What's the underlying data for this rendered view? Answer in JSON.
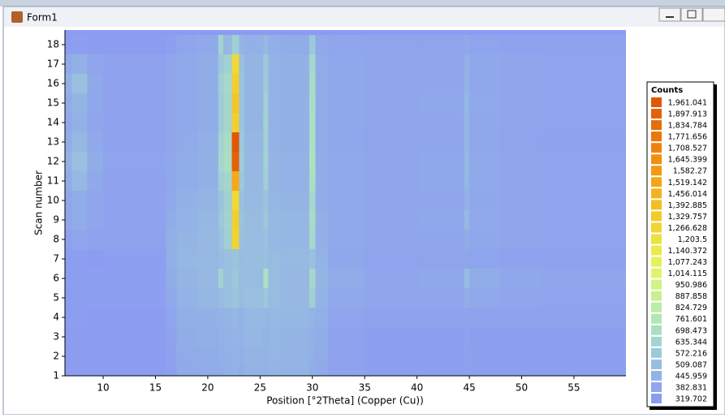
{
  "window": {
    "title": "Form1"
  },
  "chart_data": {
    "type": "heatmap",
    "xlabel": "Position [°2Theta] (Copper (Cu))",
    "ylabel": "Scan number",
    "x_edges": [
      6.35,
      7,
      8.5,
      10,
      16,
      17,
      19,
      21,
      21.5,
      22.3,
      23,
      23.5,
      25.3,
      25.8,
      27,
      29.7,
      30.3,
      31.5,
      35,
      40,
      44.5,
      45,
      48,
      52,
      55,
      59.97
    ],
    "y": [
      1,
      2,
      3,
      4,
      5,
      6,
      7,
      8,
      9,
      10,
      11,
      12,
      13,
      14,
      15,
      16,
      17,
      18
    ],
    "values": [
      [
        330,
        330,
        330,
        330,
        350,
        400,
        410,
        420,
        430,
        440,
        420,
        450,
        440,
        460,
        450,
        420,
        400,
        360,
        350,
        350,
        350,
        350,
        350,
        350,
        350
      ],
      [
        330,
        330,
        330,
        330,
        355,
        410,
        420,
        430,
        440,
        450,
        430,
        460,
        450,
        465,
        455,
        430,
        410,
        360,
        350,
        350,
        355,
        350,
        350,
        350,
        350
      ],
      [
        330,
        330,
        330,
        330,
        360,
        420,
        430,
        440,
        450,
        460,
        440,
        470,
        460,
        470,
        460,
        440,
        420,
        360,
        350,
        350,
        360,
        350,
        350,
        350,
        350
      ],
      [
        330,
        340,
        330,
        330,
        370,
        430,
        440,
        450,
        460,
        470,
        450,
        480,
        470,
        480,
        470,
        460,
        430,
        370,
        360,
        360,
        370,
        360,
        360,
        360,
        360
      ],
      [
        330,
        350,
        340,
        340,
        400,
        450,
        470,
        500,
        520,
        540,
        500,
        520,
        560,
        500,
        480,
        600,
        450,
        400,
        380,
        380,
        420,
        400,
        380,
        370,
        370
      ],
      [
        330,
        340,
        340,
        340,
        420,
        460,
        480,
        620,
        520,
        560,
        500,
        500,
        700,
        500,
        480,
        650,
        460,
        410,
        380,
        390,
        500,
        420,
        390,
        380,
        380
      ],
      [
        330,
        340,
        330,
        340,
        430,
        470,
        480,
        500,
        520,
        540,
        500,
        510,
        520,
        500,
        490,
        520,
        450,
        390,
        370,
        370,
        380,
        370,
        360,
        360,
        360
      ],
      [
        350,
        380,
        360,
        360,
        430,
        460,
        480,
        520,
        600,
        1280,
        520,
        500,
        520,
        480,
        470,
        650,
        430,
        400,
        380,
        380,
        420,
        390,
        380,
        370,
        370
      ],
      [
        380,
        420,
        380,
        360,
        420,
        450,
        470,
        560,
        620,
        1300,
        540,
        500,
        560,
        480,
        470,
        680,
        430,
        400,
        380,
        390,
        480,
        400,
        380,
        370,
        370
      ],
      [
        380,
        420,
        380,
        360,
        400,
        440,
        460,
        540,
        600,
        1250,
        520,
        490,
        540,
        470,
        460,
        650,
        420,
        400,
        380,
        380,
        440,
        390,
        380,
        370,
        370
      ],
      [
        420,
        480,
        400,
        360,
        390,
        420,
        440,
        600,
        640,
        1500,
        560,
        480,
        600,
        460,
        450,
        700,
        420,
        400,
        380,
        390,
        470,
        400,
        380,
        370,
        370
      ],
      [
        440,
        520,
        420,
        370,
        390,
        420,
        440,
        650,
        700,
        1900,
        580,
        480,
        620,
        460,
        450,
        720,
        420,
        400,
        380,
        390,
        480,
        400,
        380,
        370,
        370
      ],
      [
        420,
        480,
        400,
        360,
        380,
        410,
        430,
        620,
        680,
        1961,
        560,
        470,
        600,
        450,
        440,
        700,
        410,
        390,
        370,
        380,
        460,
        390,
        370,
        360,
        360
      ],
      [
        400,
        440,
        380,
        360,
        380,
        400,
        420,
        580,
        640,
        1300,
        540,
        460,
        620,
        450,
        440,
        700,
        410,
        390,
        380,
        380,
        460,
        390,
        380,
        370,
        370
      ],
      [
        420,
        460,
        390,
        360,
        380,
        400,
        420,
        580,
        640,
        1350,
        540,
        460,
        600,
        450,
        440,
        690,
        410,
        390,
        380,
        390,
        470,
        400,
        380,
        370,
        370
      ],
      [
        440,
        520,
        400,
        360,
        380,
        400,
        420,
        600,
        660,
        1300,
        540,
        460,
        580,
        450,
        440,
        680,
        410,
        390,
        380,
        380,
        450,
        390,
        380,
        370,
        370
      ],
      [
        400,
        440,
        380,
        360,
        380,
        400,
        420,
        560,
        620,
        1250,
        520,
        460,
        560,
        450,
        440,
        650,
        410,
        390,
        380,
        380,
        440,
        390,
        380,
        370,
        370
      ],
      [
        330,
        340,
        330,
        330,
        350,
        380,
        400,
        620,
        480,
        600,
        460,
        440,
        480,
        430,
        420,
        560,
        400,
        380,
        370,
        370,
        400,
        370,
        360,
        360,
        360
      ]
    ],
    "xlim": [
      6.35,
      59.97
    ],
    "ylim": [
      1,
      18.75
    ],
    "xticks": [
      10,
      15,
      20,
      25,
      30,
      35,
      40,
      45,
      50,
      55
    ],
    "yticks": [
      1,
      2,
      3,
      4,
      5,
      6,
      7,
      8,
      9,
      10,
      11,
      12,
      13,
      14,
      15,
      16,
      17,
      18
    ],
    "colorbar": {
      "title": "Counts",
      "ticks": [
        {
          "value": 1961.041,
          "label": "1,961.041"
        },
        {
          "value": 1897.913,
          "label": "1,897.913"
        },
        {
          "value": 1834.784,
          "label": "1,834.784"
        },
        {
          "value": 1771.656,
          "label": "1,771.656"
        },
        {
          "value": 1708.527,
          "label": "1,708.527"
        },
        {
          "value": 1645.399,
          "label": "1,645.399"
        },
        {
          "value": 1582.27,
          "label": "1,582.27"
        },
        {
          "value": 1519.142,
          "label": "1,519.142"
        },
        {
          "value": 1456.014,
          "label": "1,456.014"
        },
        {
          "value": 1392.885,
          "label": "1,392.885"
        },
        {
          "value": 1329.757,
          "label": "1,329.757"
        },
        {
          "value": 1266.628,
          "label": "1,266.628"
        },
        {
          "value": 1203.5,
          "label": "1,203.5"
        },
        {
          "value": 1140.372,
          "label": "1,140.372"
        },
        {
          "value": 1077.243,
          "label": "1,077.243"
        },
        {
          "value": 1014.115,
          "label": "1,014.115"
        },
        950.986,
        887.858,
        824.729,
        761.601,
        698.473,
        635.344,
        572.216,
        509.087,
        445.959,
        382.831,
        319.702
      ],
      "colors": [
        "#e05706",
        "#e56108",
        "#e96c09",
        "#ec770b",
        "#ef820d",
        "#f18e10",
        "#f29a14",
        "#f3a618",
        "#f3b21e",
        "#f2be24",
        "#f1ca2c",
        "#f0d534",
        "#eee03e",
        "#ebea4b",
        "#e6f15a",
        "#dff46d",
        "#d4f380",
        "#c8f092",
        "#bdeca4",
        "#b2e6b6",
        "#aadfc4",
        "#a3d5cf",
        "#9dcad8",
        "#98bedf",
        "#93b2e6",
        "#8fa6ec",
        "#8c9bf2"
      ]
    }
  }
}
